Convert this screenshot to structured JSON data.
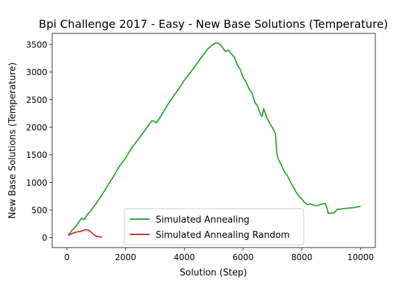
{
  "chart_data": {
    "type": "line",
    "title": "Bpi Challenge 2017 - Easy - New Base Solutions (Temperature)",
    "xlabel": "Solution (Step)",
    "ylabel": "New Base Solutions (Temperature)",
    "xlim": [
      -500,
      10500
    ],
    "ylim": [
      -180,
      3700
    ],
    "xticks": [
      0,
      2000,
      4000,
      6000,
      8000,
      10000
    ],
    "yticks": [
      0,
      500,
      1000,
      1500,
      2000,
      2500,
      3000,
      3500
    ],
    "grid": false,
    "legend_position": "lower center",
    "series": [
      {
        "name": "Simulated Annealing",
        "color": "#2ca02c",
        "x": [
          50,
          200,
          300,
          400,
          500,
          600,
          700,
          800,
          1000,
          1200,
          1400,
          1600,
          1800,
          2000,
          2200,
          2400,
          2600,
          2800,
          2900,
          3000,
          3050,
          3200,
          3400,
          3600,
          3800,
          4000,
          4200,
          4400,
          4600,
          4800,
          5000,
          5100,
          5200,
          5300,
          5400,
          5500,
          5600,
          5700,
          5800,
          5900,
          6000,
          6100,
          6200,
          6300,
          6400,
          6500,
          6600,
          6650,
          6700,
          6750,
          6800,
          6900,
          7000,
          7100,
          7150,
          7200,
          7300,
          7400,
          7500,
          7600,
          7700,
          7800,
          7900,
          8000,
          8100,
          8200,
          8300,
          8400,
          8500,
          8600,
          8700,
          8800,
          8850,
          8900,
          9000,
          9100,
          9200,
          9400,
          9600,
          9800,
          10000
        ],
        "y": [
          50,
          150,
          200,
          280,
          350,
          330,
          420,
          480,
          620,
          780,
          950,
          1120,
          1300,
          1440,
          1620,
          1760,
          1900,
          2050,
          2120,
          2100,
          2080,
          2200,
          2380,
          2540,
          2690,
          2850,
          2990,
          3130,
          3280,
          3420,
          3510,
          3530,
          3510,
          3440,
          3370,
          3400,
          3330,
          3270,
          3130,
          3050,
          2900,
          2820,
          2700,
          2620,
          2450,
          2380,
          2220,
          2200,
          2340,
          2260,
          2180,
          2080,
          1990,
          1880,
          1520,
          1420,
          1320,
          1200,
          1130,
          1020,
          930,
          830,
          750,
          700,
          630,
          600,
          610,
          590,
          580,
          595,
          610,
          620,
          540,
          440,
          445,
          450,
          510,
          525,
          535,
          545,
          570
        ]
      },
      {
        "name": "Simulated Annealing Random",
        "color": "#d62728",
        "x": [
          50,
          150,
          250,
          350,
          450,
          550,
          650,
          750,
          850,
          950,
          1050,
          1200
        ],
        "y": [
          40,
          70,
          90,
          105,
          110,
          130,
          145,
          135,
          90,
          40,
          20,
          10
        ]
      }
    ]
  }
}
